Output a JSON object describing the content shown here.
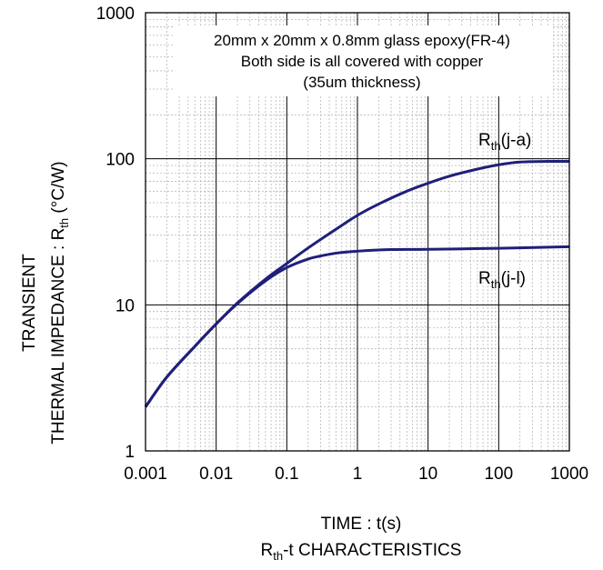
{
  "chart_data": {
    "type": "line",
    "title": "",
    "caption_main": "R",
    "caption_sub": "th",
    "caption_rest": "-t CHARACTERISTICS",
    "xlabel": "TIME : t(s)",
    "ylabel_line1": "TRANSIENT",
    "ylabel_line2_main": "THERMAL IMPEDANCE : R",
    "ylabel_line2_sub": "th",
    "ylabel_line2_rest": " (°C/W)",
    "x_scale": "log",
    "y_scale": "log",
    "xlim": [
      0.001,
      1000
    ],
    "ylim": [
      1,
      1000
    ],
    "x_ticks": [
      "0.001",
      "0.01",
      "0.1",
      "1",
      "10",
      "100",
      "1000"
    ],
    "y_ticks": [
      "1",
      "10",
      "100",
      "1000"
    ],
    "grid": true,
    "annotation": [
      "20mm x 20mm x 0.8mm glass epoxy(FR-4)",
      "Both side is all covered with copper",
      "(35um thickness)"
    ],
    "line_color": "#1f1f7a",
    "series": [
      {
        "name_main": "R",
        "name_sub": "th",
        "name_rest": "(j-a)",
        "x": [
          0.001,
          0.002,
          0.005,
          0.01,
          0.02,
          0.05,
          0.1,
          0.2,
          0.5,
          1,
          2,
          5,
          10,
          20,
          50,
          100,
          200,
          500,
          1000
        ],
        "y": [
          2.0,
          3.2,
          5.2,
          7.4,
          10.3,
          15.0,
          19.2,
          24.5,
          33.0,
          41.0,
          49.0,
          60.0,
          68.0,
          76.0,
          85.0,
          91.0,
          95.0,
          96.0,
          96.0
        ]
      },
      {
        "name_main": "R",
        "name_sub": "th",
        "name_rest": "(j-l)",
        "x": [
          0.001,
          0.002,
          0.005,
          0.01,
          0.02,
          0.05,
          0.1,
          0.2,
          0.3,
          0.5,
          1,
          3,
          10,
          100,
          1000
        ],
        "y": [
          2.0,
          3.2,
          5.2,
          7.4,
          10.2,
          14.6,
          18.0,
          20.6,
          21.6,
          22.6,
          23.3,
          23.9,
          24.0,
          24.4,
          25.0
        ]
      }
    ]
  }
}
